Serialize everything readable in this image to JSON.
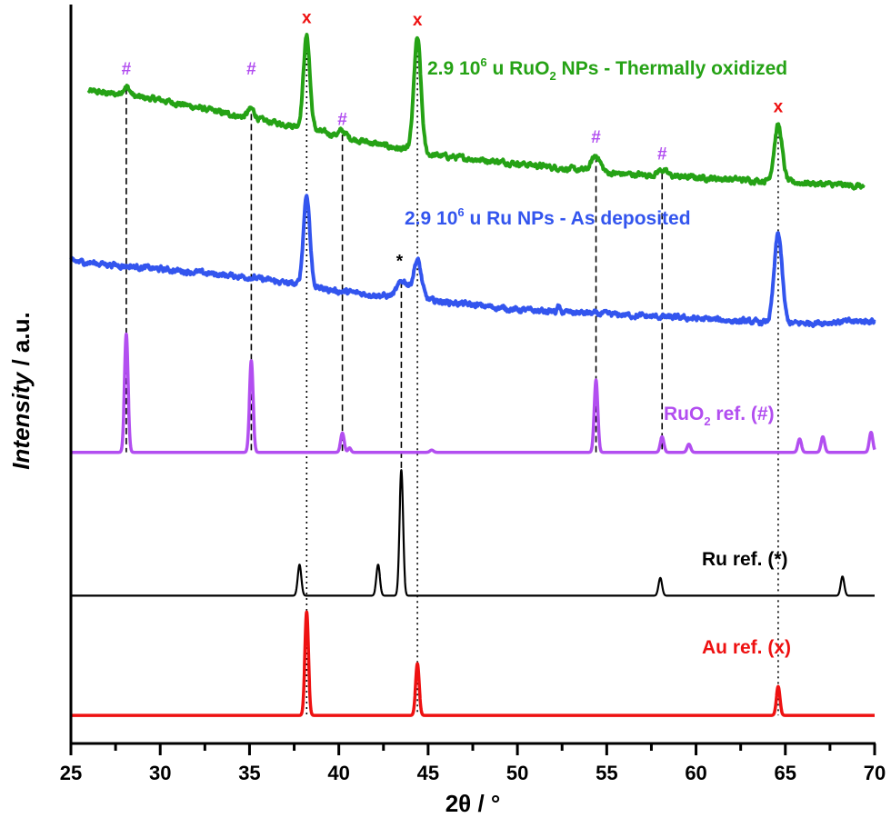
{
  "chart_data": {
    "type": "line",
    "xlabel": "2θ / °",
    "xlabel_parts": {
      "two": "2",
      "theta": "θ",
      "rest": " / °"
    },
    "ylabel": "Intensity / a.u.",
    "ylabel_parts": {
      "italic": "Intensity",
      "rest": " / a.u."
    },
    "xlim": [
      25,
      70
    ],
    "ylim": [
      0,
      100
    ],
    "y_ticks_shown": false,
    "grid": false,
    "x_ticks": [
      "25",
      "30",
      "35",
      "40",
      "45",
      "50",
      "55",
      "60",
      "65",
      "70"
    ],
    "series": [
      {
        "name": "2.9 10^6 u RuO2 NPs - Thermally oxidized",
        "label": {
          "pre": "2.9 10",
          "sup": "6",
          "mid": " u RuO",
          "sub": "2",
          "post": " NPs - Thermally oxidized"
        },
        "color": "#25a215",
        "measured": true,
        "baseline": [
          [
            26,
            88.3
          ],
          [
            30,
            87.1
          ],
          [
            35,
            84.6
          ],
          [
            38,
            83.4
          ],
          [
            40,
            82.2
          ],
          [
            45,
            79.7
          ],
          [
            50,
            78.5
          ],
          [
            55,
            77.2
          ],
          [
            60,
            76.6
          ],
          [
            65,
            76.0
          ],
          [
            69.4,
            75.4
          ]
        ],
        "peaks": [
          [
            28.1,
            1.2,
            0.2
          ],
          [
            35.1,
            1.3,
            0.2
          ],
          [
            38.2,
            12.4,
            0.18
          ],
          [
            40.2,
            0.8,
            0.2
          ],
          [
            44.4,
            15.4,
            0.2
          ],
          [
            54.4,
            2.2,
            0.25
          ],
          [
            58.1,
            0.8,
            0.25
          ],
          [
            64.6,
            7.6,
            0.22
          ]
        ]
      },
      {
        "name": "2.9 10^6 u Ru NPs - As deposited",
        "label": {
          "pre": "2.9 10",
          "sup": "6",
          "mid": " u Ru NPs - As deposited",
          "sub": "",
          "post": ""
        },
        "color": "#3355ee",
        "measured": true,
        "baseline": [
          [
            25,
            65.3
          ],
          [
            35,
            63.1
          ],
          [
            40,
            61.2
          ],
          [
            45,
            60.0
          ],
          [
            50,
            58.7
          ],
          [
            55,
            58.1
          ],
          [
            60,
            57.5
          ],
          [
            65,
            56.8
          ],
          [
            70,
            57.2
          ]
        ],
        "peaks": [
          [
            38.2,
            12.3,
            0.18
          ],
          [
            43.6,
            2.3,
            0.3
          ],
          [
            44.4,
            5.2,
            0.22
          ],
          [
            52.3,
            0.8,
            0.05
          ],
          [
            64.6,
            12.1,
            0.22
          ]
        ]
      },
      {
        "name": "RuO2 ref. (#)",
        "label": {
          "pre": "RuO",
          "sup": "",
          "mid": "",
          "sub": "2",
          "post": " ref. (#)"
        },
        "color": "#b24ef0",
        "measured": false,
        "baseline": [
          [
            25,
            39.4
          ],
          [
            70,
            39.4
          ]
        ],
        "peaks": [
          [
            28.1,
            16.0,
            0.1
          ],
          [
            35.1,
            12.4,
            0.1
          ],
          [
            40.2,
            2.6,
            0.1
          ],
          [
            40.6,
            0.6,
            0.08
          ],
          [
            45.2,
            0.3,
            0.1
          ],
          [
            54.4,
            9.8,
            0.1
          ],
          [
            58.1,
            2.1,
            0.1
          ],
          [
            59.6,
            1.1,
            0.1
          ],
          [
            65.8,
            1.8,
            0.1
          ],
          [
            67.1,
            2.1,
            0.1
          ],
          [
            69.8,
            2.7,
            0.1
          ]
        ]
      },
      {
        "name": "Ru ref. (*)",
        "label": {
          "pre": "Ru ref. (*)",
          "sup": "",
          "mid": "",
          "sub": "",
          "post": ""
        },
        "color": "#000000",
        "measured": false,
        "baseline": [
          [
            25,
            20.0
          ],
          [
            70,
            20.0
          ]
        ],
        "peaks": [
          [
            37.8,
            4.2,
            0.1
          ],
          [
            42.2,
            4.2,
            0.1
          ],
          [
            43.5,
            17.0,
            0.1
          ],
          [
            58.0,
            2.4,
            0.1
          ],
          [
            68.2,
            2.6,
            0.1
          ]
        ]
      },
      {
        "name": "Au ref. (x)",
        "label": {
          "pre": "Au ref. (x)",
          "sup": "",
          "mid": "",
          "sub": "",
          "post": ""
        },
        "color": "#ee1111",
        "measured": false,
        "baseline": [
          [
            25,
            3.8
          ],
          [
            70,
            3.8
          ]
        ],
        "peaks": [
          [
            38.2,
            14.0,
            0.1
          ],
          [
            44.4,
            7.0,
            0.1
          ],
          [
            64.6,
            3.9,
            0.1
          ]
        ]
      }
    ],
    "reference_lines": [
      {
        "style": "dashed",
        "x": 28.1,
        "from": 88.7,
        "to": 39.4
      },
      {
        "style": "dashed",
        "x": 35.1,
        "from": 85.2,
        "to": 39.4
      },
      {
        "style": "dashed",
        "x": 40.2,
        "from": 82.4,
        "to": 39.4
      },
      {
        "style": "dashed",
        "x": 54.4,
        "from": 79.5,
        "to": 39.4
      },
      {
        "style": "dashed",
        "x": 58.1,
        "from": 77.2,
        "to": 39.4
      },
      {
        "style": "dashed",
        "x": 43.5,
        "from": 62.5,
        "to": 37.0
      },
      {
        "style": "dotted",
        "x": 38.2,
        "from": 95.7,
        "to": 3.8
      },
      {
        "style": "dotted",
        "x": 44.4,
        "from": 95.3,
        "to": 3.8
      },
      {
        "style": "dotted",
        "x": 64.6,
        "from": 83.6,
        "to": 3.8
      }
    ],
    "annotations": [
      {
        "text": "#",
        "x": 28.1,
        "y": 90.5,
        "color": "#b24ef0"
      },
      {
        "text": "#",
        "x": 35.1,
        "y": 90.5,
        "color": "#b24ef0"
      },
      {
        "text": "#",
        "x": 40.2,
        "y": 83.7,
        "color": "#b24ef0"
      },
      {
        "text": "#",
        "x": 54.4,
        "y": 81.3,
        "color": "#b24ef0"
      },
      {
        "text": "#",
        "x": 58.1,
        "y": 79.0,
        "color": "#b24ef0"
      },
      {
        "text": "x",
        "x": 38.2,
        "y": 97.5,
        "color": "#ee1111"
      },
      {
        "text": "x",
        "x": 44.4,
        "y": 97.2,
        "color": "#ee1111"
      },
      {
        "text": "x",
        "x": 64.6,
        "y": 85.4,
        "color": "#ee1111"
      },
      {
        "text": "*",
        "x": 43.4,
        "y": 64.5,
        "color": "#000000"
      }
    ]
  }
}
